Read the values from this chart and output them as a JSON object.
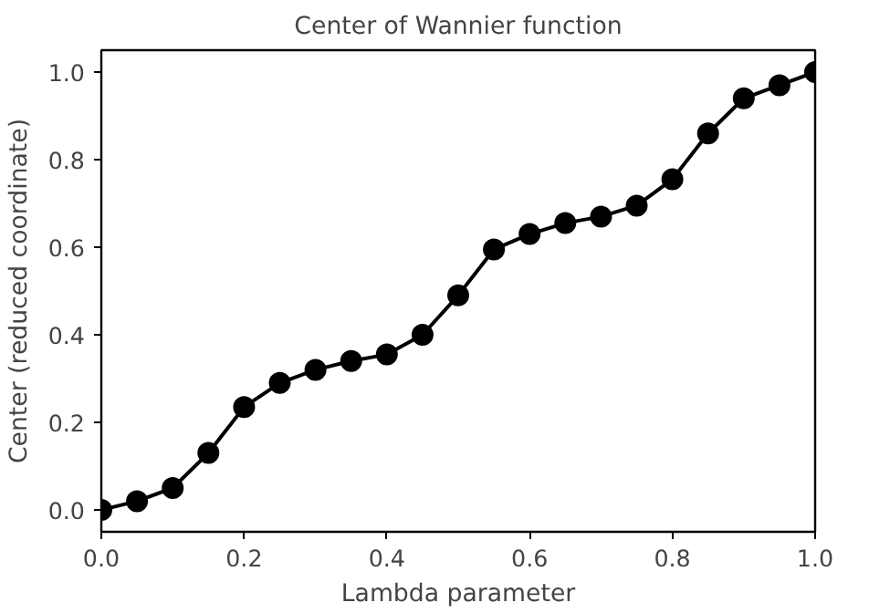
{
  "chart_data": {
    "type": "line",
    "title": "Center of Wannier function",
    "xlabel": "Lambda parameter",
    "ylabel": "Center (reduced coordinate)",
    "x": [
      0.0,
      0.05,
      0.1,
      0.15,
      0.2,
      0.25,
      0.3,
      0.35,
      0.4,
      0.45,
      0.5,
      0.55,
      0.6,
      0.65,
      0.7,
      0.75,
      0.8,
      0.85,
      0.9,
      0.95,
      1.0
    ],
    "series": [
      {
        "color": "#000000",
        "values": [
          0.0,
          0.02,
          0.05,
          0.13,
          0.235,
          0.29,
          0.32,
          0.34,
          0.355,
          0.4,
          0.49,
          0.595,
          0.63,
          0.655,
          0.67,
          0.695,
          0.755,
          0.86,
          0.94,
          0.97,
          1.0
        ]
      }
    ],
    "xlim": [
      0.0,
      1.0
    ],
    "ylim": [
      -0.05,
      1.05
    ],
    "xticks": [
      {
        "value": 0,
        "label": "0.0"
      },
      {
        "value": 0.2,
        "label": "0.2"
      },
      {
        "value": 0.4,
        "label": "0.4"
      },
      {
        "value": 0.6,
        "label": "0.6"
      },
      {
        "value": 0.8,
        "label": "0.8"
      },
      {
        "value": 1,
        "label": "1.0"
      }
    ],
    "yticks": [
      {
        "value": 0,
        "label": "0.0"
      },
      {
        "value": 0.2,
        "label": "0.2"
      },
      {
        "value": 0.4,
        "label": "0.4"
      },
      {
        "value": 0.6,
        "label": "0.6"
      },
      {
        "value": 0.8,
        "label": "0.8"
      },
      {
        "value": 1,
        "label": "1.0"
      }
    ],
    "grid": false,
    "marker": "circle",
    "line_style": "solid"
  }
}
